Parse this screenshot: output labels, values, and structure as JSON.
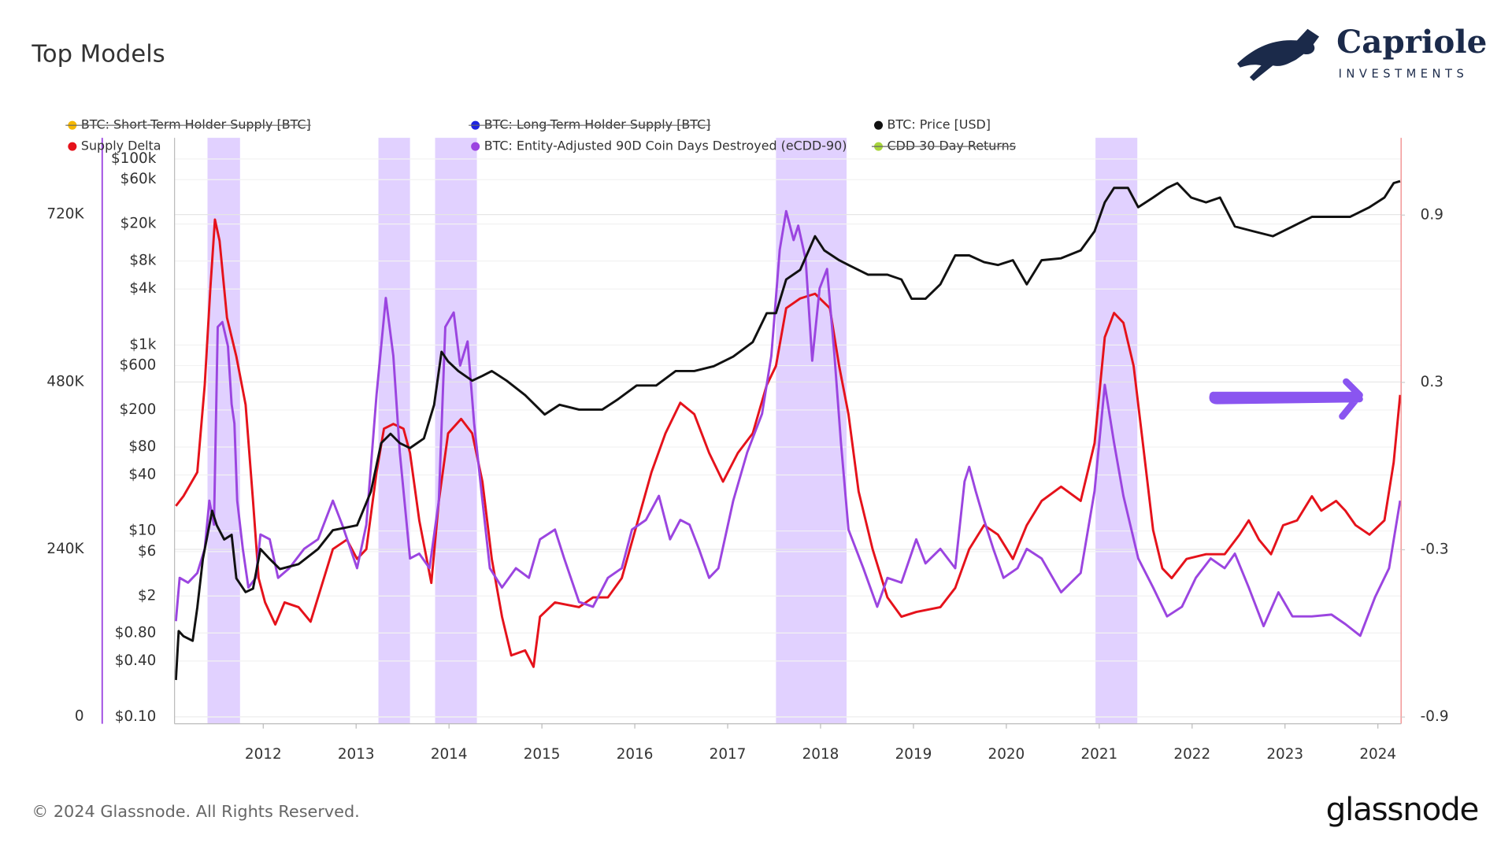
{
  "page": {
    "logo_name": "Capriole",
    "logo_sub": "INVESTMENTS",
    "footer": "© 2024 Glassnode. All Rights Reserved.",
    "footer_logo": "glassnode"
  },
  "chart_data": {
    "type": "line",
    "title": "Top Models",
    "xlim": [
      2011.045,
      2024.25
    ],
    "xticks": [
      2012,
      2013,
      2014,
      2015,
      2016,
      2017,
      2018,
      2019,
      2020,
      2021,
      2022,
      2023,
      2024
    ],
    "ylim": [
      -10000,
      830000
    ],
    "yticks": [
      0,
      {
        "value": 240000,
        "label": "240K"
      },
      {
        "value": 480000,
        "label": "480K"
      },
      {
        "value": 720000,
        "label": "720K"
      }
    ],
    "y2lim": [
      -0.924,
      1.177
    ],
    "y2ticks": [
      -0.9,
      -0.3,
      0.3,
      0.9
    ],
    "price_log": true,
    "price_ylim": [
      0.0846,
      169000
    ],
    "price_yticks": [
      {
        "value": 0.1,
        "label": "$0.10"
      },
      {
        "value": 0.4,
        "label": "$0.40"
      },
      {
        "value": 0.8,
        "label": "$0.80"
      },
      {
        "value": 2,
        "label": "$2"
      },
      {
        "value": 6,
        "label": "$6"
      },
      {
        "value": 10,
        "label": "$10"
      },
      {
        "value": 40,
        "label": "$40"
      },
      {
        "value": 80,
        "label": "$80"
      },
      {
        "value": 200,
        "label": "$200"
      },
      {
        "value": 600,
        "label": "$600"
      },
      {
        "value": 1000,
        "label": "$1k"
      },
      {
        "value": 4000,
        "label": "$4k"
      },
      {
        "value": 8000,
        "label": "$8k"
      },
      {
        "value": 20000,
        "label": "$20k"
      },
      {
        "value": 60000,
        "label": "$60k"
      },
      {
        "value": 100000,
        "label": "$100k"
      }
    ],
    "grid": true,
    "shade_color": "#dcc9ff",
    "shaded_ranges": [
      [
        2011.4,
        2011.75
      ],
      [
        2013.24,
        2013.58
      ],
      [
        2013.85,
        2014.3
      ],
      [
        2017.52,
        2018.28
      ],
      [
        2020.96,
        2021.41
      ]
    ],
    "series": [
      {
        "name": "BTC: Short-Term Holder Supply [BTC]",
        "color": "#f5b800",
        "hidden": true
      },
      {
        "name": "Supply Delta",
        "color": "#e5121b",
        "axis": "y2",
        "x": [
          2011.06,
          2011.14,
          2011.29,
          2011.37,
          2011.43,
          2011.48,
          2011.53,
          2011.61,
          2011.71,
          2011.81,
          2011.89,
          2011.95,
          2012.02,
          2012.13,
          2012.23,
          2012.38,
          2012.51,
          2012.59,
          2012.75,
          2012.9,
          2013.01,
          2013.11,
          2013.22,
          2013.3,
          2013.4,
          2013.51,
          2013.58,
          2013.68,
          2013.81,
          2013.89,
          2013.99,
          2014.13,
          2014.25,
          2014.36,
          2014.46,
          2014.57,
          2014.67,
          2014.82,
          2014.91,
          2014.98,
          2015.14,
          2015.4,
          2015.55,
          2015.71,
          2015.86,
          2016.02,
          2016.18,
          2016.33,
          2016.49,
          2016.64,
          2016.8,
          2016.95,
          2017.11,
          2017.27,
          2017.42,
          2017.52,
          2017.63,
          2017.78,
          2017.94,
          2018.1,
          2018.2,
          2018.3,
          2018.41,
          2018.56,
          2018.72,
          2018.87,
          2019.03,
          2019.29,
          2019.45,
          2019.6,
          2019.76,
          2019.91,
          2020.07,
          2020.22,
          2020.38,
          2020.59,
          2020.8,
          2020.95,
          2021.06,
          2021.16,
          2021.26,
          2021.37,
          2021.47,
          2021.58,
          2021.68,
          2021.78,
          2021.94,
          2022.15,
          2022.35,
          2022.51,
          2022.61,
          2022.72,
          2022.85,
          2022.98,
          2023.13,
          2023.29,
          2023.39,
          2023.55,
          2023.65,
          2023.76,
          2023.91,
          2024.07,
          2024.17,
          2024.24
        ],
        "values": [
          -0.143,
          -0.108,
          -0.022,
          0.29,
          0.635,
          0.884,
          0.808,
          0.532,
          0.393,
          0.22,
          -0.125,
          -0.402,
          -0.489,
          -0.568,
          -0.489,
          -0.506,
          -0.558,
          -0.471,
          -0.298,
          -0.264,
          -0.333,
          -0.298,
          -0.022,
          0.134,
          0.151,
          0.134,
          0.047,
          -0.195,
          -0.419,
          -0.125,
          0.117,
          0.169,
          0.117,
          -0.056,
          -0.333,
          -0.54,
          -0.679,
          -0.661,
          -0.72,
          -0.54,
          -0.489,
          -0.506,
          -0.471,
          -0.471,
          -0.402,
          -0.212,
          -0.022,
          0.117,
          0.227,
          0.186,
          0.047,
          -0.056,
          0.047,
          0.117,
          0.29,
          0.359,
          0.566,
          0.601,
          0.618,
          0.566,
          0.359,
          0.186,
          -0.091,
          -0.298,
          -0.471,
          -0.54,
          -0.523,
          -0.506,
          -0.437,
          -0.298,
          -0.212,
          -0.246,
          -0.333,
          -0.212,
          -0.125,
          -0.074,
          -0.125,
          0.082,
          0.462,
          0.549,
          0.514,
          0.359,
          0.082,
          -0.229,
          -0.367,
          -0.402,
          -0.333,
          -0.316,
          -0.316,
          -0.246,
          -0.195,
          -0.264,
          -0.316,
          -0.212,
          -0.195,
          -0.108,
          -0.16,
          -0.125,
          -0.16,
          -0.212,
          -0.246,
          -0.195,
          0.013,
          0.255
        ]
      },
      {
        "name": "BTC: Long-Term Holder Supply [BTC]",
        "color": "#1f24e0",
        "hidden": true
      },
      {
        "name": "BTC: Entity-Adjusted 90D Coin Days Destroyed (eCDD-90)",
        "color": "#9b45e0",
        "axis": "y",
        "x": [
          2011.06,
          2011.1,
          2011.19,
          2011.29,
          2011.37,
          2011.42,
          2011.47,
          2011.51,
          2011.56,
          2011.62,
          2011.66,
          2011.69,
          2011.72,
          2011.78,
          2011.84,
          2011.92,
          2011.97,
          2012.07,
          2012.16,
          2012.28,
          2012.44,
          2012.59,
          2012.75,
          2012.85,
          2013.01,
          2013.11,
          2013.22,
          2013.32,
          2013.4,
          2013.47,
          2013.58,
          2013.68,
          2013.79,
          2013.89,
          2013.96,
          2014.05,
          2014.12,
          2014.2,
          2014.27,
          2014.36,
          2014.44,
          2014.57,
          2014.72,
          2014.86,
          2014.98,
          2015.14,
          2015.24,
          2015.4,
          2015.55,
          2015.71,
          2015.86,
          2015.97,
          2016.12,
          2016.26,
          2016.38,
          2016.49,
          2016.59,
          2016.69,
          2016.8,
          2016.9,
          2017.06,
          2017.21,
          2017.37,
          2017.47,
          2017.56,
          2017.63,
          2017.71,
          2017.76,
          2017.84,
          2017.91,
          2017.99,
          2018.07,
          2018.15,
          2018.22,
          2018.3,
          2018.46,
          2018.61,
          2018.72,
          2018.87,
          2019.03,
          2019.13,
          2019.29,
          2019.45,
          2019.55,
          2019.6,
          2019.67,
          2019.76,
          2019.86,
          2019.97,
          2020.12,
          2020.22,
          2020.38,
          2020.59,
          2020.8,
          2020.95,
          2021.06,
          2021.16,
          2021.26,
          2021.42,
          2021.58,
          2021.73,
          2021.89,
          2022.04,
          2022.2,
          2022.35,
          2022.46,
          2022.61,
          2022.77,
          2022.93,
          2023.08,
          2023.29,
          2023.5,
          2023.65,
          2023.81,
          2023.97,
          2024.12,
          2024.24
        ],
        "values": [
          137000,
          199200,
          192300,
          206100,
          240700,
          309900,
          275300,
          558900,
          565800,
          531200,
          448200,
          420500,
          309900,
          240700,
          185400,
          199200,
          261400,
          254500,
          199200,
          213000,
          240700,
          254500,
          309900,
          275300,
          213000,
          275300,
          462000,
          600400,
          517400,
          379000,
          226900,
          233800,
          213000,
          309900,
          558900,
          579600,
          503500,
          538100,
          420500,
          309900,
          213000,
          185400,
          213000,
          199200,
          254500,
          268400,
          226900,
          164600,
          157700,
          199200,
          213000,
          268400,
          282200,
          316800,
          254500,
          282200,
          275300,
          240700,
          199200,
          213000,
          309900,
          379000,
          434400,
          517400,
          669500,
          724900,
          683400,
          704100,
          655700,
          510400,
          614200,
          641900,
          517400,
          392900,
          268400,
          213000,
          157700,
          199200,
          192300,
          254500,
          219900,
          240700,
          213000,
          337500,
          358300,
          323700,
          282200,
          240700,
          199200,
          213000,
          240700,
          226900,
          178400,
          206100,
          323700,
          475900,
          392900,
          316800,
          226900,
          185400,
          143900,
          157700,
          199200,
          226900,
          213000,
          233800,
          185400,
          130000,
          178400,
          143900,
          143900,
          146600,
          132800,
          116200,
          171500,
          213000,
          309900
        ]
      },
      {
        "name": "BTC: Price [USD]",
        "color": "#111111",
        "axis": "price",
        "x": [
          2011.06,
          2011.09,
          2011.14,
          2011.24,
          2011.29,
          2011.35,
          2011.4,
          2011.45,
          2011.5,
          2011.58,
          2011.66,
          2011.71,
          2011.81,
          2011.89,
          2011.97,
          2012.07,
          2012.18,
          2012.38,
          2012.59,
          2012.75,
          2013.01,
          2013.16,
          2013.27,
          2013.37,
          2013.47,
          2013.58,
          2013.73,
          2013.84,
          2013.92,
          2013.99,
          2014.1,
          2014.25,
          2014.36,
          2014.46,
          2014.62,
          2014.82,
          2015.03,
          2015.19,
          2015.4,
          2015.65,
          2015.81,
          2016.02,
          2016.23,
          2016.44,
          2016.64,
          2016.85,
          2017.06,
          2017.27,
          2017.42,
          2017.52,
          2017.63,
          2017.78,
          2017.94,
          2018.04,
          2018.2,
          2018.3,
          2018.51,
          2018.72,
          2018.87,
          2018.98,
          2019.13,
          2019.29,
          2019.45,
          2019.6,
          2019.76,
          2019.91,
          2020.07,
          2020.22,
          2020.38,
          2020.59,
          2020.8,
          2020.95,
          2021.06,
          2021.16,
          2021.31,
          2021.42,
          2021.58,
          2021.73,
          2021.84,
          2021.99,
          2022.15,
          2022.3,
          2022.46,
          2022.66,
          2022.87,
          2023.08,
          2023.29,
          2023.5,
          2023.7,
          2023.91,
          2024.07,
          2024.17,
          2024.24
        ],
        "values": [
          0.25,
          0.84,
          0.74,
          0.66,
          1.5,
          5,
          9.1,
          16.5,
          11.5,
          8.1,
          9.1,
          3.1,
          2.2,
          2.4,
          6.4,
          5,
          3.9,
          4.4,
          6.4,
          10.2,
          11.5,
          26.6,
          88,
          111,
          88,
          78,
          99,
          228,
          846,
          667,
          525,
          414,
          466,
          525,
          414,
          289,
          179,
          228,
          202,
          202,
          257,
          367,
          367,
          525,
          525,
          592,
          751,
          1074,
          2198,
          2198,
          5070,
          6430,
          14800,
          10400,
          8170,
          7250,
          5700,
          5700,
          5070,
          3140,
          3140,
          4500,
          9200,
          9200,
          7780,
          7250,
          8170,
          4500,
          8170,
          8570,
          10400,
          16700,
          34200,
          48900,
          48900,
          30300,
          38500,
          48900,
          55100,
          38500,
          34200,
          38500,
          18800,
          16700,
          14800,
          18800,
          23900,
          23900,
          23900,
          30300,
          38500,
          55100,
          57800
        ]
      },
      {
        "name": "CDD 30 Day Returns",
        "color": "#a8d63c",
        "hidden": true
      }
    ]
  }
}
